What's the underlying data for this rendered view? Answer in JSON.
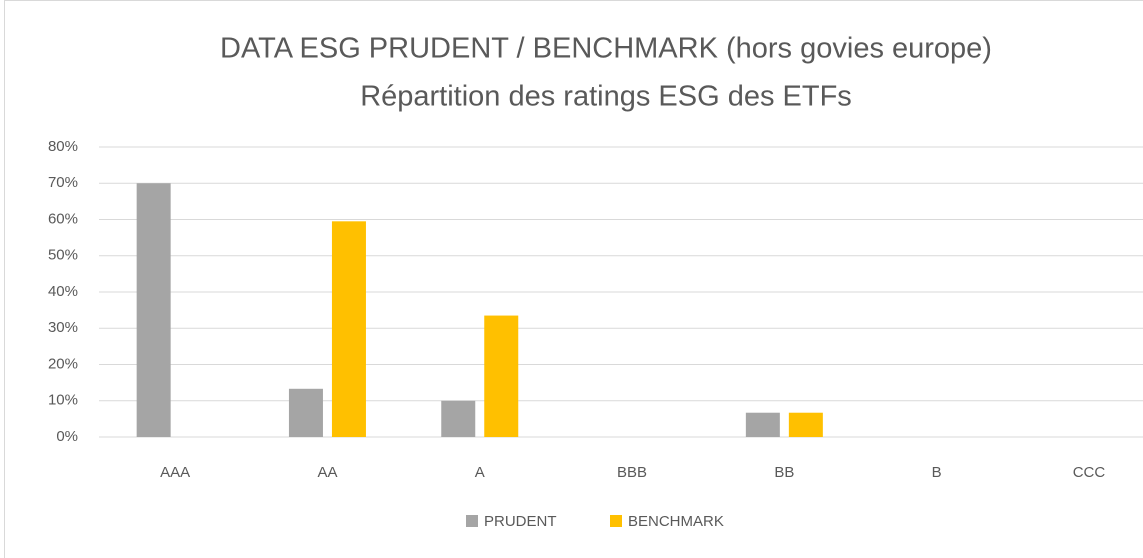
{
  "chart_data": {
    "type": "bar",
    "title": "DATA ESG PRUDENT / BENCHMARK (hors govies europe)",
    "subtitle": "Répartition des ratings ESG des ETFs",
    "categories": [
      "AAA",
      "AA",
      "A",
      "BBB",
      "BB",
      "B",
      "CCC"
    ],
    "series": [
      {
        "name": "PRUDENT",
        "color": "#a5a5a5",
        "values": [
          70,
          13.3,
          10,
          0,
          6.7,
          0,
          0
        ]
      },
      {
        "name": "BENCHMARK",
        "color": "#ffc000",
        "values": [
          0,
          59.5,
          33.5,
          0,
          6.7,
          0,
          0
        ]
      }
    ],
    "ylim": [
      0,
      80
    ],
    "yticks": [
      {
        "value": 0,
        "label": "0%"
      },
      {
        "value": 10,
        "label": "10%"
      },
      {
        "value": 20,
        "label": "20%"
      },
      {
        "value": 30,
        "label": "30%"
      },
      {
        "value": 40,
        "label": "40%"
      },
      {
        "value": 50,
        "label": "50%"
      },
      {
        "value": 60,
        "label": "60%"
      },
      {
        "value": 70,
        "label": "70%"
      },
      {
        "value": 80,
        "label": "80%"
      }
    ],
    "grid": true,
    "legend": "bottom"
  }
}
